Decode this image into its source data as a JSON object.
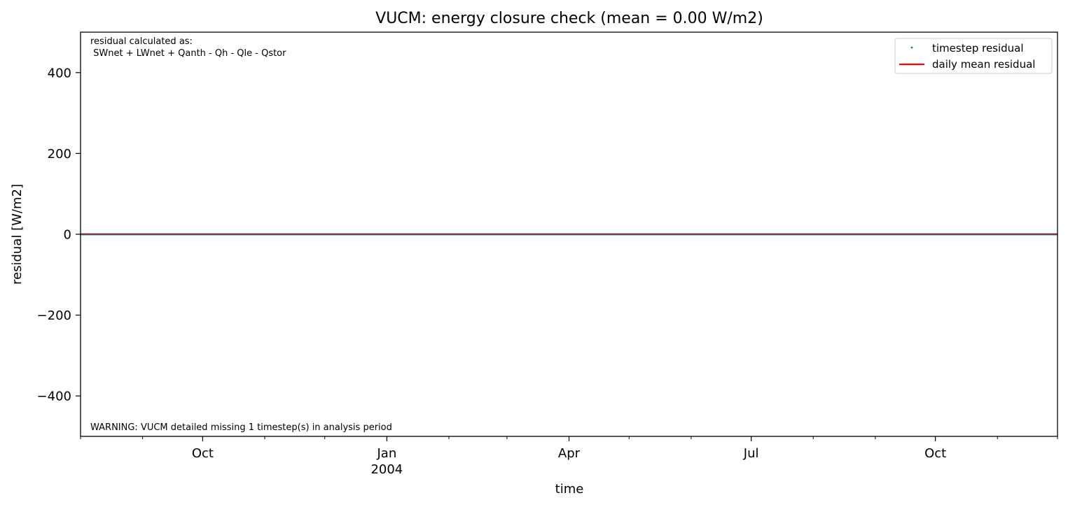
{
  "chart_data": {
    "type": "line",
    "title": "VUCM: energy closure check (mean = 0.00 W/m2)",
    "xlabel": "time",
    "ylabel": "residual [W/m2]",
    "ylim": [
      -500,
      500
    ],
    "xlim": [
      "2003-08-01",
      "2004-12-01"
    ],
    "grid": false,
    "legend_placement": "top-right",
    "x_ticks": [
      {
        "date": "2003-10-01",
        "label": "Oct",
        "sublabel": ""
      },
      {
        "date": "2004-01-01",
        "label": "Jan",
        "sublabel": "2004"
      },
      {
        "date": "2004-04-01",
        "label": "Apr",
        "sublabel": ""
      },
      {
        "date": "2004-07-01",
        "label": "Jul",
        "sublabel": ""
      },
      {
        "date": "2004-10-01",
        "label": "Oct",
        "sublabel": ""
      }
    ],
    "x_minor_ticks": [
      "2003-08-01",
      "2003-09-01",
      "2003-11-01",
      "2003-12-01",
      "2004-02-01",
      "2004-03-01",
      "2004-05-01",
      "2004-06-01",
      "2004-08-01",
      "2004-09-01",
      "2004-11-01",
      "2004-12-01"
    ],
    "y_ticks": [
      {
        "value": 400,
        "label": "400"
      },
      {
        "value": 200,
        "label": "200"
      },
      {
        "value": 0,
        "label": "0"
      },
      {
        "value": -200,
        "label": "−200"
      },
      {
        "value": -400,
        "label": "−400"
      }
    ],
    "series": [
      {
        "name": "timestep residual",
        "marker": "point",
        "color": "#1f77b4",
        "x": [
          "2003-08-01",
          "2004-12-01"
        ],
        "y": [
          0,
          0
        ]
      },
      {
        "name": "daily mean residual",
        "marker": "line",
        "color": "#ff0000",
        "x": [
          "2003-08-01",
          "2004-12-01"
        ],
        "y": [
          0,
          0
        ]
      }
    ],
    "annotations": {
      "top_left_line1": "residual calculated as:",
      "top_left_line2": " SWnet + LWnet + Qanth - Qh - Qle - Qstor",
      "bottom_left": "WARNING: VUCM detailed missing 1 timestep(s) in analysis period"
    }
  }
}
